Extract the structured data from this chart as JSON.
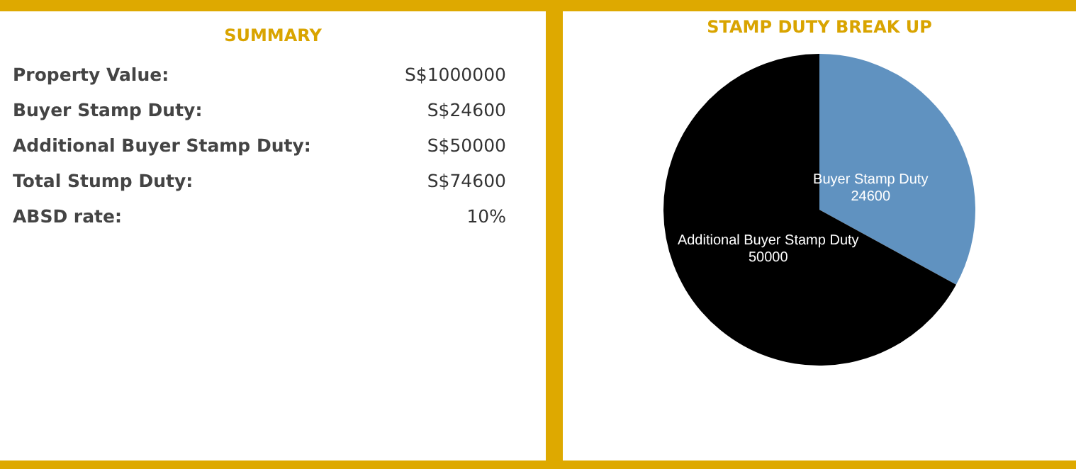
{
  "chart_data": [
    {
      "type": "other",
      "title": "SUMMARY",
      "annotations": [
        "Property Value:",
        "S$1000000",
        "Buyer Stamp Duty:",
        "S$24600",
        "Additional Buyer Stamp Duty:",
        "S$50000",
        "Total Stump Duty:",
        "S$74600",
        "ABSD rate:",
        "10%"
      ]
    },
    {
      "type": "pie",
      "title": "STAMP DUTY BREAK UP",
      "categories": [
        "Buyer Stamp Duty",
        "Additional Buyer Stamp Duty"
      ],
      "values": [
        24600,
        50000
      ],
      "colors": [
        "#6092c0",
        "#000000"
      ],
      "data_labels": true
    }
  ]
}
